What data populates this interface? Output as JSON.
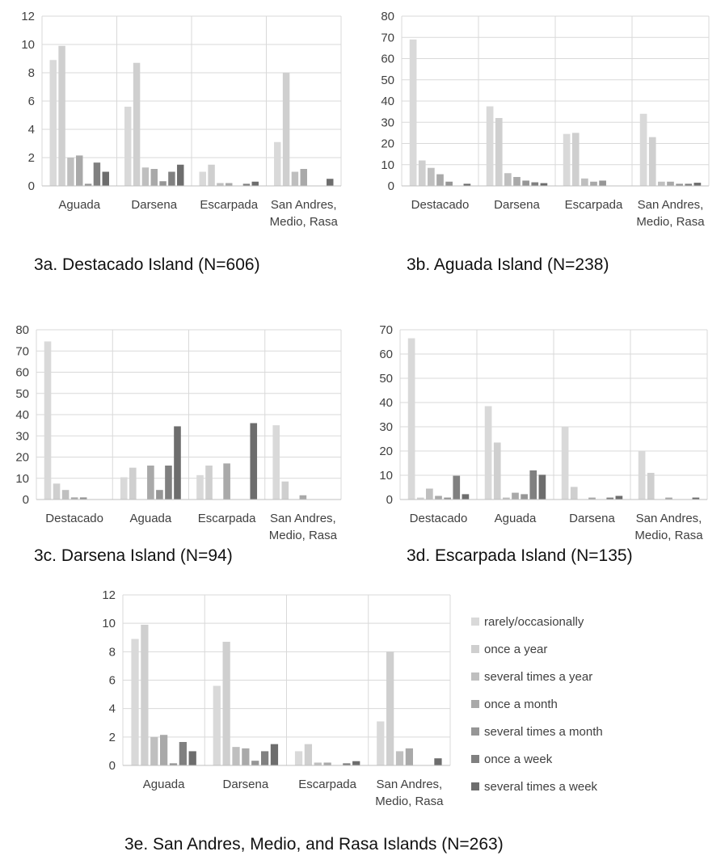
{
  "legend": {
    "items": [
      {
        "label": "rarely/occasionally",
        "color": "#d9d9d9"
      },
      {
        "label": "once a year",
        "color": "#cfcfcf"
      },
      {
        "label": "several times a year",
        "color": "#bfbfbf"
      },
      {
        "label": "once a month",
        "color": "#a9a9a9"
      },
      {
        "label": "several times a month",
        "color": "#969696"
      },
      {
        "label": "once a week",
        "color": "#808080"
      },
      {
        "label": "several times a week",
        "color": "#6d6d6d"
      }
    ]
  },
  "chart_data": [
    {
      "id": "3a",
      "type": "bar",
      "caption": "3a. Destacado Island (N=606)",
      "categories": [
        "Aguada",
        "Darsena",
        "Escarpada",
        "San Andres,\nMedio, Rasa"
      ],
      "ylim": [
        0,
        12
      ],
      "yticks": [
        0,
        2,
        4,
        6,
        8,
        10,
        12
      ],
      "grid": true,
      "series": [
        {
          "name": "rarely/occasionally",
          "values": [
            8.9,
            5.6,
            1.0,
            3.1
          ]
        },
        {
          "name": "once a year",
          "values": [
            9.9,
            8.7,
            1.5,
            8.0
          ]
        },
        {
          "name": "several times a year",
          "values": [
            2.0,
            1.3,
            0.2,
            1.0
          ]
        },
        {
          "name": "once a month",
          "values": [
            2.15,
            1.2,
            0.2,
            1.2
          ]
        },
        {
          "name": "several times a month",
          "values": [
            0.15,
            0.33,
            0,
            0
          ]
        },
        {
          "name": "once a week",
          "values": [
            1.65,
            1.0,
            0.15,
            0
          ]
        },
        {
          "name": "several times a week",
          "values": [
            1.0,
            1.5,
            0.3,
            0.5
          ]
        }
      ]
    },
    {
      "id": "3b",
      "type": "bar",
      "caption": "3b. Aguada Island (N=238)",
      "categories": [
        "Destacado",
        "Darsena",
        "Escarpada",
        "San Andres,\nMedio, Rasa"
      ],
      "ylim": [
        0,
        80
      ],
      "yticks": [
        0,
        10,
        20,
        30,
        40,
        50,
        60,
        70,
        80
      ],
      "grid": true,
      "series": [
        {
          "name": "rarely/occasionally",
          "values": [
            69,
            37.5,
            24.5,
            34
          ]
        },
        {
          "name": "once a year",
          "values": [
            12,
            32,
            25,
            23
          ]
        },
        {
          "name": "several times a year",
          "values": [
            8.5,
            6,
            3.5,
            2
          ]
        },
        {
          "name": "once a month",
          "values": [
            5.5,
            4.2,
            2,
            2
          ]
        },
        {
          "name": "several times a month",
          "values": [
            2,
            2.5,
            2.5,
            1
          ]
        },
        {
          "name": "once a week",
          "values": [
            0,
            1.7,
            0,
            1
          ]
        },
        {
          "name": "several times a week",
          "values": [
            1,
            1.3,
            0,
            1.5
          ]
        }
      ]
    },
    {
      "id": "3c",
      "type": "bar",
      "caption": "3c. Darsena Island (N=94)",
      "categories": [
        "Destacado",
        "Aguada",
        "Escarpada",
        "San Andres,\nMedio, Rasa"
      ],
      "ylim": [
        0,
        80
      ],
      "yticks": [
        0,
        10,
        20,
        30,
        40,
        50,
        60,
        70,
        80
      ],
      "grid": true,
      "series": [
        {
          "name": "rarely/occasionally",
          "values": [
            74.5,
            10.5,
            11.5,
            35
          ]
        },
        {
          "name": "once a year",
          "values": [
            7.5,
            15,
            16,
            8.5
          ]
        },
        {
          "name": "several times a year",
          "values": [
            4.5,
            0,
            0,
            0
          ]
        },
        {
          "name": "once a month",
          "values": [
            1,
            16,
            17,
            2
          ]
        },
        {
          "name": "several times a month",
          "values": [
            1,
            4.5,
            0,
            0
          ]
        },
        {
          "name": "once a week",
          "values": [
            0,
            16,
            0,
            0
          ]
        },
        {
          "name": "several times a week",
          "values": [
            0,
            34.5,
            36,
            0
          ]
        }
      ]
    },
    {
      "id": "3d",
      "type": "bar",
      "caption": "3d. Escarpada Island (N=135)",
      "categories": [
        "Destacado",
        "Aguada",
        "Darsena",
        "San Andres,\nMedio, Rasa"
      ],
      "ylim": [
        0,
        70
      ],
      "yticks": [
        0,
        10,
        20,
        30,
        40,
        50,
        60,
        70
      ],
      "grid": true,
      "series": [
        {
          "name": "rarely/occasionally",
          "values": [
            66.5,
            38.5,
            30,
            20
          ]
        },
        {
          "name": "once a year",
          "values": [
            0.8,
            23.5,
            5.2,
            11
          ]
        },
        {
          "name": "several times a year",
          "values": [
            4.5,
            0.8,
            0,
            0
          ]
        },
        {
          "name": "once a month",
          "values": [
            1.5,
            2.8,
            0.8,
            0.8
          ]
        },
        {
          "name": "several times a month",
          "values": [
            0.8,
            2.2,
            0,
            0
          ]
        },
        {
          "name": "once a week",
          "values": [
            9.8,
            12,
            0.8,
            0
          ]
        },
        {
          "name": "several times a week",
          "values": [
            2.2,
            10.2,
            1.5,
            0.8
          ]
        }
      ]
    },
    {
      "id": "3e",
      "type": "bar",
      "caption": "3e. San Andres, Medio, and Rasa Islands (N=263)",
      "categories": [
        "Aguada",
        "Darsena",
        "Escarpada",
        "San Andres,\nMedio, Rasa"
      ],
      "ylim": [
        0,
        12
      ],
      "yticks": [
        0,
        2,
        4,
        6,
        8,
        10,
        12
      ],
      "grid": true,
      "series": [
        {
          "name": "rarely/occasionally",
          "values": [
            8.9,
            5.6,
            1.0,
            3.1
          ]
        },
        {
          "name": "once a year",
          "values": [
            9.9,
            8.7,
            1.5,
            8.0
          ]
        },
        {
          "name": "several times a year",
          "values": [
            2.0,
            1.3,
            0.2,
            1.0
          ]
        },
        {
          "name": "once a month",
          "values": [
            2.15,
            1.2,
            0.2,
            1.2
          ]
        },
        {
          "name": "several times a month",
          "values": [
            0.15,
            0.33,
            0,
            0
          ]
        },
        {
          "name": "once a week",
          "values": [
            1.65,
            1.0,
            0.15,
            0
          ]
        },
        {
          "name": "several times a week",
          "values": [
            1.0,
            1.5,
            0.3,
            0.5
          ]
        }
      ]
    }
  ]
}
